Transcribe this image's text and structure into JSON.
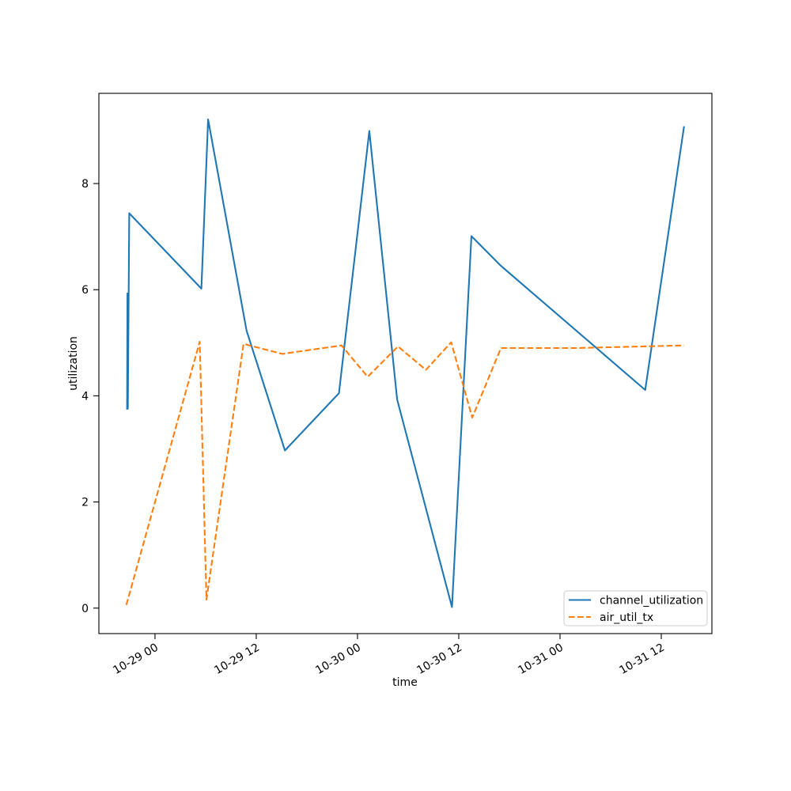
{
  "figure": {
    "background": "#ffffff",
    "spine_color": "#000000"
  },
  "chart_data": {
    "type": "line",
    "title": "",
    "xlabel": "time",
    "ylabel": "utilization",
    "x_unit": "hours since 10-29 00:00",
    "xlim": [
      -6.65,
      66.0
    ],
    "ylim": [
      -0.48,
      9.7
    ],
    "grid": false,
    "x_ticks": [
      {
        "t": 0,
        "label": "10-29 00"
      },
      {
        "t": 12,
        "label": "10-29 12"
      },
      {
        "t": 24,
        "label": "10-30 00"
      },
      {
        "t": 36,
        "label": "10-30 12"
      },
      {
        "t": 48,
        "label": "10-31 00"
      },
      {
        "t": 60,
        "label": "10-31 12"
      }
    ],
    "y_ticks": [
      0,
      2,
      4,
      6,
      8
    ],
    "legend": {
      "position": "lower right",
      "entries": [
        "channel_utilization",
        "air_util_tx"
      ]
    },
    "series": [
      {
        "name": "channel_utilization",
        "color": "#1f77b4",
        "style": "solid",
        "points": [
          [
            -3.3,
            3.74
          ],
          [
            -3.27,
            5.93
          ],
          [
            -3.22,
            3.76
          ],
          [
            -3.05,
            7.44
          ],
          [
            5.5,
            6.02
          ],
          [
            6.3,
            9.21
          ],
          [
            10.85,
            5.23
          ],
          [
            15.4,
            2.97
          ],
          [
            21.8,
            4.05
          ],
          [
            25.4,
            8.99
          ],
          [
            28.7,
            3.93
          ],
          [
            35.2,
            0.02
          ],
          [
            37.5,
            7.01
          ],
          [
            41.0,
            6.45
          ],
          [
            58.1,
            4.11
          ],
          [
            62.7,
            9.08
          ]
        ]
      },
      {
        "name": "air_util_tx",
        "color": "#ff7f0e",
        "style": "dashed",
        "points": [
          [
            -3.4,
            0.06
          ],
          [
            5.3,
            5.02
          ],
          [
            6.1,
            0.16
          ],
          [
            10.5,
            4.98
          ],
          [
            15.1,
            4.79
          ],
          [
            22.1,
            4.95
          ],
          [
            25.2,
            4.36
          ],
          [
            28.8,
            4.93
          ],
          [
            32.1,
            4.49
          ],
          [
            35.1,
            5.01
          ],
          [
            37.6,
            3.59
          ],
          [
            41.0,
            4.9
          ],
          [
            50.0,
            4.9
          ],
          [
            62.7,
            4.95
          ]
        ]
      }
    ]
  }
}
